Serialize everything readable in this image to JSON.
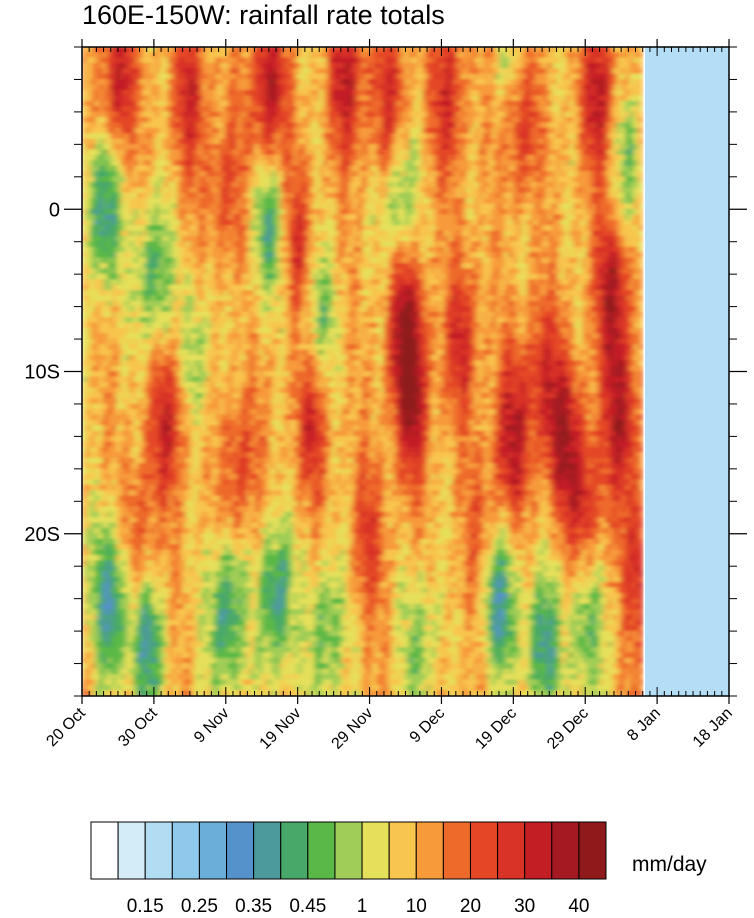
{
  "chart_data": {
    "type": "heatmap",
    "title": "160E-150W: rainfall rate totals",
    "xlabel": "",
    "ylabel": "",
    "x_ticks": [
      "20 Oct",
      "30 Oct",
      "9 Nov",
      "19 Nov",
      "29 Nov",
      "9 Dec",
      "19 Dec",
      "29 Dec",
      "8 Jan",
      "18 Jan"
    ],
    "x_range": [
      "20 Oct",
      "18 Jan"
    ],
    "data_end": "6 Jan",
    "y_ticks": [
      "0",
      "10S",
      "20S"
    ],
    "y_tick_values": [
      0,
      -10,
      -20
    ],
    "y_range": [
      -30,
      10
    ],
    "missing_color": "#b4def5",
    "colorbar": {
      "unit": "mm/day",
      "labels": [
        "0.15",
        "0.25",
        "0.35",
        "0.45",
        "1",
        "10",
        "20",
        "30",
        "40"
      ],
      "colors": [
        "#ffffff",
        "#d4ecf8",
        "#b2dcf2",
        "#8ec8ea",
        "#6aaed9",
        "#5592cc",
        "#4d9a9c",
        "#48a86a",
        "#5ab847",
        "#a0cd57",
        "#e5e05a",
        "#f8c54e",
        "#f79a3a",
        "#ee6a2a",
        "#e44626",
        "#d93226",
        "#c41e25",
        "#a51a22",
        "#8e1a1b"
      ]
    },
    "features": [
      {
        "x": 5,
        "y": 8,
        "v": 0.9
      },
      {
        "x": 15,
        "y": 7,
        "v": 0.7
      },
      {
        "x": 26,
        "y": 7,
        "v": 1.0
      },
      {
        "x": 37,
        "y": 8,
        "v": 0.9
      },
      {
        "x": 43,
        "y": 6,
        "v": 0.8
      },
      {
        "x": 51,
        "y": 7,
        "v": 0.7
      },
      {
        "x": 61,
        "y": 6,
        "v": 0.8
      },
      {
        "x": 72,
        "y": 7,
        "v": 0.9
      },
      {
        "x": 74,
        "y": -5,
        "v": 1.0
      },
      {
        "x": 75,
        "y": -13,
        "v": 0.9
      },
      {
        "x": 78,
        "y": -22,
        "v": 0.8
      },
      {
        "x": 67,
        "y": -14,
        "v": 0.9
      },
      {
        "x": 60,
        "y": -14,
        "v": 0.9
      },
      {
        "x": 45,
        "y": -7,
        "v": 1.0
      },
      {
        "x": 46,
        "y": -12,
        "v": 0.9
      },
      {
        "x": 53,
        "y": -8,
        "v": 0.7
      },
      {
        "x": 32,
        "y": -13,
        "v": 0.7
      },
      {
        "x": 12,
        "y": -13,
        "v": 0.8
      },
      {
        "x": 22,
        "y": -16,
        "v": 0.6
      },
      {
        "x": 30,
        "y": -2,
        "v": 0.6
      },
      {
        "x": 64,
        "y": -10,
        "v": 0.6
      },
      {
        "x": 70,
        "y": -18,
        "v": 0.7
      },
      {
        "x": 8,
        "y": -20,
        "v": 0.5
      },
      {
        "x": 56,
        "y": -20,
        "v": 0.5
      },
      {
        "x": 40,
        "y": -20,
        "v": 0.5
      },
      {
        "x": 20,
        "y": 1,
        "v": 0.5
      },
      {
        "x": 3,
        "y": 0,
        "v": -1.0
      },
      {
        "x": 10,
        "y": -4,
        "v": -0.8
      },
      {
        "x": 26,
        "y": -1,
        "v": -0.8
      },
      {
        "x": 44,
        "y": 1,
        "v": -0.8
      },
      {
        "x": 4,
        "y": -24,
        "v": -1.0
      },
      {
        "x": 9,
        "y": -27,
        "v": -0.9
      },
      {
        "x": 20,
        "y": -25,
        "v": -1.0
      },
      {
        "x": 27,
        "y": -24,
        "v": -1.0
      },
      {
        "x": 34,
        "y": -26,
        "v": -0.7
      },
      {
        "x": 58,
        "y": -24,
        "v": -1.0
      },
      {
        "x": 64,
        "y": -27,
        "v": -0.9
      },
      {
        "x": 70,
        "y": -26,
        "v": -0.7
      },
      {
        "x": 47,
        "y": -27,
        "v": -0.6
      },
      {
        "x": 33,
        "y": -7,
        "v": -0.6
      },
      {
        "x": 76,
        "y": 3,
        "v": -0.6
      },
      {
        "x": 16,
        "y": -9,
        "v": -0.5
      },
      {
        "x": 60,
        "y": 9,
        "v": -0.5
      }
    ]
  }
}
